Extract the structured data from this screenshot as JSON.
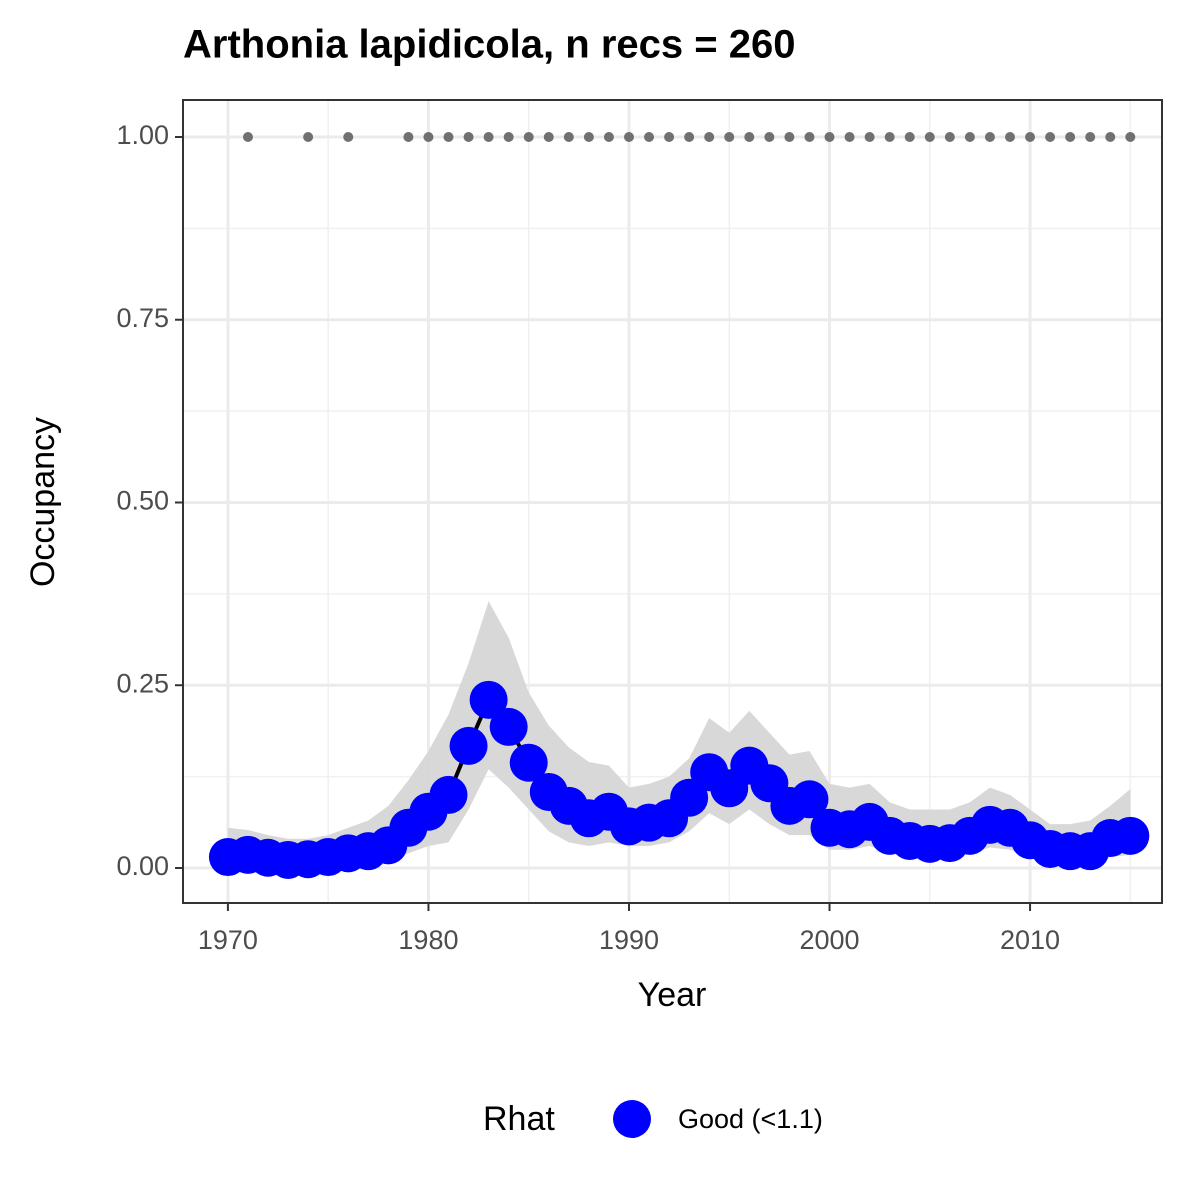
{
  "chart_data": {
    "type": "line",
    "title": "Arthonia lapidicola, n recs = 260",
    "x_label": "Year",
    "y_label": "Occupancy",
    "x": [
      1970,
      1971,
      1972,
      1973,
      1974,
      1975,
      1976,
      1977,
      1978,
      1979,
      1980,
      1981,
      1982,
      1983,
      1984,
      1985,
      1986,
      1987,
      1988,
      1989,
      1990,
      1991,
      1992,
      1993,
      1994,
      1995,
      1996,
      1997,
      1998,
      1999,
      2000,
      2001,
      2002,
      2003,
      2004,
      2005,
      2006,
      2007,
      2008,
      2009,
      2010,
      2011,
      2012,
      2013,
      2014,
      2015
    ],
    "series": [
      {
        "name": "Good (<1.1)",
        "color": "#0000ff",
        "line_color": "#000000",
        "ribbon_color": "#d6d6d6",
        "values": [
          0.015,
          0.018,
          0.014,
          0.011,
          0.012,
          0.015,
          0.02,
          0.023,
          0.031,
          0.055,
          0.077,
          0.1,
          0.167,
          0.23,
          0.193,
          0.144,
          0.104,
          0.085,
          0.068,
          0.077,
          0.057,
          0.062,
          0.068,
          0.096,
          0.131,
          0.109,
          0.14,
          0.116,
          0.085,
          0.094,
          0.055,
          0.053,
          0.063,
          0.044,
          0.037,
          0.033,
          0.034,
          0.044,
          0.059,
          0.055,
          0.038,
          0.026,
          0.023,
          0.023,
          0.041,
          0.044
        ],
        "lower": [
          0.002,
          0.003,
          0.002,
          0.001,
          0.002,
          0.003,
          0.005,
          0.006,
          0.01,
          0.02,
          0.03,
          0.035,
          0.08,
          0.135,
          0.11,
          0.08,
          0.05,
          0.035,
          0.03,
          0.035,
          0.03,
          0.03,
          0.035,
          0.05,
          0.075,
          0.06,
          0.08,
          0.06,
          0.045,
          0.045,
          0.025,
          0.025,
          0.03,
          0.02,
          0.015,
          0.013,
          0.014,
          0.02,
          0.028,
          0.025,
          0.016,
          0.01,
          0.008,
          0.008,
          0.015,
          0.018
        ],
        "upper": [
          0.055,
          0.052,
          0.045,
          0.04,
          0.04,
          0.045,
          0.055,
          0.065,
          0.085,
          0.12,
          0.16,
          0.21,
          0.28,
          0.365,
          0.315,
          0.24,
          0.195,
          0.165,
          0.145,
          0.14,
          0.11,
          0.115,
          0.125,
          0.15,
          0.205,
          0.185,
          0.215,
          0.185,
          0.155,
          0.16,
          0.115,
          0.11,
          0.115,
          0.09,
          0.08,
          0.08,
          0.08,
          0.09,
          0.11,
          0.1,
          0.08,
          0.06,
          0.06,
          0.065,
          0.085,
          0.108
        ]
      }
    ],
    "records": {
      "color": "#707070",
      "x": [
        1971,
        1974,
        1976,
        1979,
        1980,
        1981,
        1982,
        1983,
        1984,
        1985,
        1986,
        1987,
        1988,
        1989,
        1990,
        1991,
        1992,
        1993,
        1994,
        1995,
        1996,
        1997,
        1998,
        1999,
        2000,
        2001,
        2002,
        2003,
        2004,
        2005,
        2006,
        2007,
        2008,
        2009,
        2010,
        2011,
        2012,
        2013,
        2014,
        2015
      ],
      "values": [
        1,
        1,
        1,
        1,
        1,
        1,
        1,
        1,
        1,
        1,
        1,
        1,
        1,
        1,
        1,
        1,
        1,
        1,
        1,
        1,
        1,
        1,
        1,
        1,
        1,
        1,
        1,
        1,
        1,
        1,
        1,
        1,
        1,
        1,
        1,
        1,
        1,
        1,
        1,
        1
      ]
    },
    "xlim": [
      1967.76,
      2016.58
    ],
    "ylim": [
      -0.0479,
      1.0506
    ],
    "xticks": [
      1970,
      1980,
      1990,
      2000,
      2010
    ],
    "yticks": [
      {
        "value": 0,
        "label": "0.00"
      },
      {
        "value": 0.25,
        "label": "0.25"
      },
      {
        "value": 0.5,
        "label": "0.50"
      },
      {
        "value": 0.75,
        "label": "0.75"
      },
      {
        "value": 1,
        "label": "1.00"
      }
    ],
    "x_minor_ticks": [
      1975,
      1985,
      1995,
      2005,
      2015
    ],
    "y_minor_ticks": [
      0.125,
      0.375,
      0.625,
      0.875
    ],
    "grid": true,
    "legend_title": "Rhat",
    "legend_position": "bottom"
  }
}
